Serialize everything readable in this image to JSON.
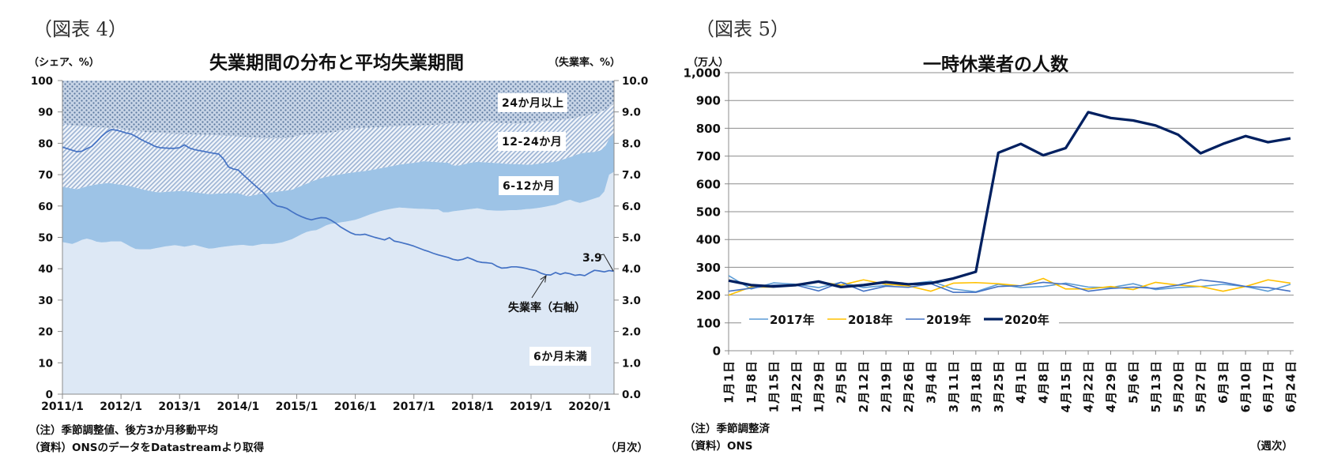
{
  "chart_data": [
    {
      "figure_label": "（図表 4）",
      "type": "area",
      "stacked": true,
      "title": "失業期間の分布と平均失業期間",
      "ylabel": "（シェア、%）",
      "y2label": "（失業率、%）",
      "xlabel": "（月次）",
      "note": "（注）季節調整値、後方3か月移動平均",
      "source": "（資料）ONSのデータをDatastreamより取得",
      "x_start": "2011/1",
      "x_end": "2020/6",
      "frequency": "monthly",
      "x_tick_labels": [
        "2011/1",
        "2012/1",
        "2013/1",
        "2014/1",
        "2015/1",
        "2016/1",
        "2017/1",
        "2018/1",
        "2019/1",
        "2020/1"
      ],
      "ylim": [
        0,
        100
      ],
      "yticks": [
        0,
        10,
        20,
        30,
        40,
        50,
        60,
        70,
        80,
        90,
        100
      ],
      "ytick_labels": [
        "0",
        "10",
        "20",
        "30",
        "40",
        "50",
        "60",
        "70",
        "80",
        "90",
        "100"
      ],
      "y2lim": [
        0,
        10
      ],
      "y2ticks": [
        0,
        1,
        2,
        3,
        4,
        5,
        6,
        7,
        8,
        9,
        10
      ],
      "y2tick_labels": [
        "0.0",
        "1.0",
        "2.0",
        "3.0",
        "4.0",
        "5.0",
        "6.0",
        "7.0",
        "8.0",
        "9.0",
        "10.0"
      ],
      "grid": false,
      "series": [
        {
          "name": "6か月未満",
          "type": "area",
          "axis": "left",
          "color": "#dde8f5",
          "values": [
            48.5,
            48.2,
            47.9,
            48.5,
            49.2,
            49.6,
            49.2,
            48.6,
            48.4,
            48.5,
            48.7,
            48.7,
            48.7,
            47.9,
            47.0,
            46.3,
            46.2,
            46.2,
            46.2,
            46.5,
            46.8,
            47.1,
            47.3,
            47.5,
            47.3,
            47.0,
            47.3,
            47.6,
            47.2,
            46.8,
            46.4,
            46.5,
            46.8,
            47.0,
            47.2,
            47.4,
            47.5,
            47.6,
            47.4,
            47.3,
            47.6,
            47.9,
            47.9,
            47.9,
            48.1,
            48.4,
            48.9,
            49.4,
            50.2,
            51.0,
            51.7,
            52.1,
            52.3,
            53.0,
            53.8,
            54.3,
            54.5,
            54.8,
            55.0,
            55.3,
            55.6,
            56.1,
            56.7,
            57.3,
            57.8,
            58.3,
            58.7,
            59.0,
            59.3,
            59.5,
            59.4,
            59.3,
            59.2,
            59.1,
            59.1,
            59.0,
            58.9,
            58.9,
            58.0,
            58.0,
            58.3,
            58.5,
            58.7,
            58.9,
            59.1,
            59.3,
            59.0,
            58.7,
            58.6,
            58.5,
            58.5,
            58.6,
            58.7,
            58.7,
            58.8,
            59.0,
            59.1,
            59.3,
            59.5,
            59.8,
            60.1,
            60.4,
            61.0,
            61.6,
            62.0,
            61.4,
            61.0,
            61.4,
            61.9,
            62.4,
            62.9,
            64.6,
            70.0,
            70.9
          ]
        },
        {
          "name": "6-12か月",
          "type": "area",
          "axis": "left",
          "color": "#9dc3e6",
          "values": [
            17.6,
            17.7,
            17.7,
            16.9,
            16.6,
            16.7,
            17.4,
            18.3,
            18.7,
            18.8,
            18.6,
            18.3,
            18.1,
            18.7,
            19.3,
            19.6,
            19.3,
            18.9,
            18.6,
            18.0,
            17.6,
            17.4,
            17.3,
            17.2,
            17.5,
            17.8,
            17.3,
            16.8,
            17.0,
            17.2,
            17.4,
            17.4,
            17.2,
            17.0,
            16.9,
            16.7,
            16.6,
            16.0,
            15.7,
            16.1,
            16.1,
            16.1,
            16.3,
            16.5,
            16.5,
            16.4,
            16.1,
            15.8,
            15.6,
            15.5,
            15.4,
            15.7,
            16.1,
            15.9,
            15.5,
            15.3,
            15.4,
            15.3,
            15.4,
            15.3,
            15.2,
            14.9,
            14.5,
            14.1,
            13.9,
            13.7,
            13.6,
            13.6,
            13.6,
            13.7,
            14.0,
            14.3,
            14.6,
            14.9,
            15.2,
            15.2,
            15.2,
            15.1,
            15.9,
            15.8,
            14.7,
            14.4,
            14.5,
            14.7,
            14.8,
            14.8,
            15.0,
            15.2,
            15.2,
            15.2,
            15.1,
            14.9,
            14.7,
            14.7,
            14.5,
            14.2,
            14.1,
            14.1,
            14.1,
            14.0,
            13.9,
            13.7,
            13.6,
            13.5,
            13.6,
            14.8,
            15.7,
            15.6,
            15.2,
            14.9,
            14.7,
            13.9,
            11.5,
            12.0
          ]
        },
        {
          "name": "12-24か月",
          "type": "area",
          "axis": "left",
          "color": "#a9bfdc",
          "pattern": "diagonal-hatch",
          "values": [
            20.1,
            20.1,
            20.1,
            20.1,
            19.6,
            19.0,
            18.6,
            18.2,
            18.0,
            17.7,
            17.7,
            17.8,
            17.8,
            17.7,
            17.8,
            18.0,
            18.3,
            18.5,
            18.7,
            18.9,
            18.9,
            18.7,
            18.5,
            18.3,
            18.2,
            18.1,
            18.3,
            18.4,
            18.6,
            18.7,
            18.9,
            18.7,
            18.5,
            18.4,
            18.2,
            18.2,
            18.1,
            18.5,
            18.9,
            18.5,
            18.0,
            17.6,
            17.4,
            17.2,
            17.0,
            16.8,
            16.6,
            16.6,
            16.5,
            16.2,
            15.7,
            15.1,
            14.6,
            14.2,
            13.8,
            13.8,
            13.8,
            13.9,
            13.9,
            14.0,
            14.0,
            13.9,
            13.7,
            13.6,
            13.4,
            13.1,
            12.9,
            12.7,
            12.5,
            12.2,
            12.1,
            12.0,
            11.8,
            11.7,
            11.5,
            11.6,
            11.8,
            12.0,
            12.2,
            12.4,
            13.3,
            13.4,
            13.2,
            12.9,
            12.7,
            12.6,
            12.8,
            13.0,
            13.0,
            12.9,
            12.9,
            12.9,
            12.9,
            12.8,
            13.0,
            13.3,
            13.4,
            13.3,
            13.3,
            13.2,
            13.2,
            13.3,
            12.9,
            12.5,
            12.2,
            11.9,
            11.8,
            11.8,
            12.0,
            12.1,
            12.3,
            12.1,
            10.0,
            9.6
          ]
        },
        {
          "name": "24か月以上",
          "type": "area",
          "axis": "left",
          "color": "#8aa2c4",
          "pattern": "dotted-grid",
          "values": [
            13.8,
            14.0,
            14.3,
            14.5,
            14.6,
            14.7,
            14.8,
            14.9,
            14.9,
            15.0,
            15.0,
            15.2,
            15.4,
            15.7,
            15.9,
            16.1,
            16.2,
            16.4,
            16.5,
            16.6,
            16.7,
            16.8,
            16.9,
            17.0,
            17.0,
            17.1,
            17.1,
            17.2,
            17.2,
            17.3,
            17.3,
            17.4,
            17.5,
            17.6,
            17.7,
            17.7,
            17.8,
            17.9,
            18.0,
            18.1,
            18.3,
            18.4,
            18.4,
            18.4,
            18.4,
            18.4,
            18.4,
            18.2,
            17.7,
            17.3,
            17.2,
            17.1,
            17.0,
            16.9,
            16.9,
            16.6,
            16.3,
            16.0,
            15.7,
            15.4,
            15.2,
            15.1,
            15.1,
            15.0,
            14.9,
            14.9,
            14.8,
            14.7,
            14.6,
            14.6,
            14.5,
            14.4,
            14.4,
            14.3,
            14.2,
            14.2,
            14.1,
            14.0,
            13.9,
            13.8,
            13.7,
            13.7,
            13.6,
            13.5,
            13.4,
            13.3,
            13.2,
            13.1,
            13.2,
            13.4,
            13.5,
            13.6,
            13.7,
            13.8,
            13.7,
            13.5,
            13.4,
            13.3,
            13.1,
            13.0,
            12.8,
            12.6,
            12.5,
            12.4,
            12.2,
            11.9,
            11.5,
            11.2,
            10.9,
            10.6,
            10.1,
            9.4,
            8.5,
            7.5
          ]
        },
        {
          "name": "失業率（右軸）",
          "type": "line",
          "axis": "right",
          "color": "#4472c4",
          "values": [
            7.88,
            7.83,
            7.78,
            7.73,
            7.75,
            7.83,
            7.9,
            8.05,
            8.22,
            8.35,
            8.44,
            8.42,
            8.38,
            8.33,
            8.3,
            8.22,
            8.13,
            8.05,
            7.98,
            7.9,
            7.86,
            7.85,
            7.84,
            7.84,
            7.86,
            7.95,
            7.85,
            7.8,
            7.77,
            7.74,
            7.71,
            7.68,
            7.66,
            7.5,
            7.25,
            7.18,
            7.15,
            7.0,
            6.86,
            6.72,
            6.58,
            6.45,
            6.28,
            6.1,
            6.0,
            5.97,
            5.92,
            5.82,
            5.73,
            5.66,
            5.6,
            5.56,
            5.6,
            5.63,
            5.62,
            5.55,
            5.45,
            5.33,
            5.24,
            5.15,
            5.09,
            5.08,
            5.1,
            5.05,
            5.0,
            4.96,
            4.92,
            4.99,
            4.88,
            4.85,
            4.81,
            4.77,
            4.72,
            4.66,
            4.6,
            4.55,
            4.49,
            4.44,
            4.4,
            4.36,
            4.3,
            4.27,
            4.3,
            4.36,
            4.3,
            4.23,
            4.2,
            4.19,
            4.17,
            4.08,
            4.02,
            4.03,
            4.06,
            4.06,
            4.04,
            4.01,
            3.97,
            3.94,
            3.86,
            3.81,
            3.8,
            3.88,
            3.82,
            3.87,
            3.84,
            3.79,
            3.81,
            3.78,
            3.87,
            3.95,
            3.93,
            3.9,
            3.94,
            3.92
          ]
        }
      ],
      "annotations": [
        {
          "text": "3.9"
        }
      ]
    },
    {
      "figure_label": "（図表 5）",
      "type": "line",
      "title": "一時休業者の人数",
      "ylabel": "（万人）",
      "xlabel": "（週次）",
      "note": "（注）季節調整済",
      "source": "（資料）ONS",
      "categories": [
        "1月1日",
        "1月8日",
        "1月15日",
        "1月22日",
        "1月29日",
        "2月5日",
        "2月12日",
        "2月19日",
        "2月26日",
        "3月4日",
        "3月11日",
        "3月18日",
        "3月25日",
        "4月1日",
        "4月8日",
        "4月15日",
        "4月22日",
        "4月29日",
        "5月6日",
        "5月13日",
        "5月20日",
        "5月27日",
        "6月3日",
        "6月10日",
        "6月17日",
        "6月24日"
      ],
      "ylim": [
        0,
        1000
      ],
      "yticks": [
        0,
        100,
        200,
        300,
        400,
        500,
        600,
        700,
        800,
        900,
        1000
      ],
      "ytick_labels": [
        "0",
        "100",
        "200",
        "300",
        "400",
        "500",
        "600",
        "700",
        "800",
        "900",
        "1,000"
      ],
      "grid": true,
      "legend": "bottom-left",
      "series": [
        {
          "name": "2017年",
          "color": "#5b9bd5",
          "values": [
            270,
            222,
            244,
            239,
            227,
            246,
            227,
            235,
            240,
            250,
            222,
            212,
            239,
            227,
            231,
            243,
            229,
            227,
            241,
            220,
            227,
            231,
            239,
            231,
            214,
            239
          ]
        },
        {
          "name": "2018年",
          "color": "#ffc000",
          "values": [
            200,
            229,
            229,
            236,
            248,
            236,
            255,
            239,
            233,
            214,
            243,
            245,
            241,
            233,
            260,
            222,
            222,
            231,
            220,
            246,
            236,
            231,
            214,
            231,
            255,
            243
          ]
        },
        {
          "name": "2019年",
          "color": "#4472c4",
          "values": [
            214,
            225,
            236,
            236,
            215,
            246,
            214,
            232,
            228,
            241,
            210,
            210,
            231,
            234,
            246,
            239,
            214,
            224,
            229,
            224,
            236,
            255,
            246,
            231,
            227,
            214
          ]
        },
        {
          "name": "2020年",
          "color": "#002060",
          "values": [
            252,
            236,
            231,
            236,
            249,
            229,
            236,
            247,
            239,
            243,
            260,
            284,
            712,
            744,
            703,
            729,
            858,
            837,
            828,
            810,
            777,
            710,
            744,
            772,
            750,
            764
          ]
        }
      ]
    }
  ]
}
